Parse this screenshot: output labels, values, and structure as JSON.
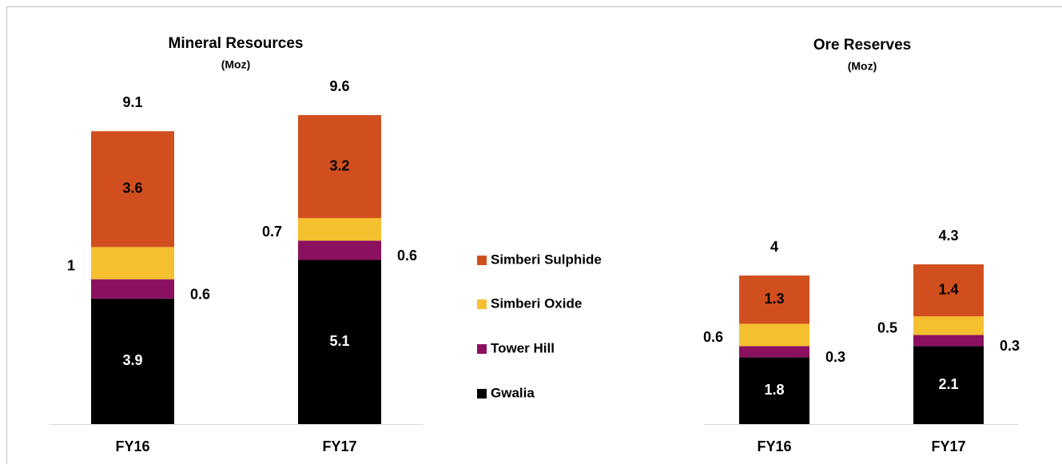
{
  "chart_data": [
    {
      "type": "bar",
      "stacked": true,
      "title": "Mineral Resources",
      "subtitle": "(Moz)",
      "categories": [
        "FY16",
        "FY17"
      ],
      "series": [
        {
          "name": "Gwalia",
          "color": "#000000",
          "values": [
            3.9,
            5.1
          ]
        },
        {
          "name": "Tower Hill",
          "color": "#8b1060",
          "values": [
            0.6,
            0.6
          ]
        },
        {
          "name": "Simberi Oxide",
          "color": "#f5c02f",
          "values": [
            1.0,
            0.7
          ]
        },
        {
          "name": "Simberi Sulphide",
          "color": "#d14f1e",
          "values": [
            3.6,
            3.2
          ]
        }
      ],
      "totals": [
        9.1,
        9.6
      ]
    },
    {
      "type": "bar",
      "stacked": true,
      "title": "Ore Reserves",
      "subtitle": "(Moz)",
      "categories": [
        "FY16",
        "FY17"
      ],
      "series": [
        {
          "color": "#000000",
          "values": [
            1.8,
            2.1
          ]
        },
        {
          "color": "#8b1060",
          "values": [
            0.3,
            0.3
          ]
        },
        {
          "color": "#f5c02f",
          "values": [
            0.6,
            0.5
          ]
        },
        {
          "color": "#d14f1e",
          "values": [
            1.3,
            1.4
          ]
        }
      ],
      "totals": [
        4.0,
        4.3
      ]
    }
  ]
}
